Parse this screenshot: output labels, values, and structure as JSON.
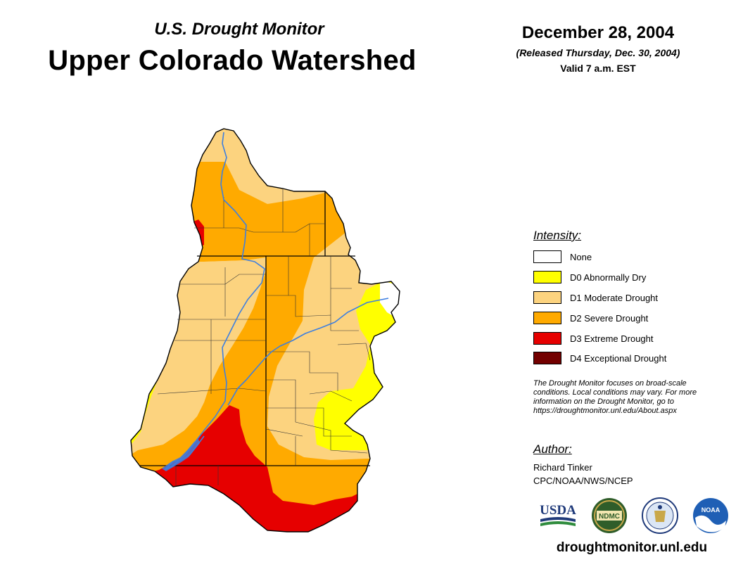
{
  "header": {
    "subtitle": "U.S. Drought Monitor",
    "title": "Upper Colorado Watershed",
    "date": "December 28, 2004",
    "released": "(Released Thursday, Dec. 30, 2004)",
    "valid": "Valid 7 a.m. EST"
  },
  "legend": {
    "title": "Intensity:",
    "items": [
      {
        "label": "None",
        "color": "#ffffff"
      },
      {
        "label": "D0 Abnormally Dry",
        "color": "#ffff00"
      },
      {
        "label": "D1 Moderate Drought",
        "color": "#fcd37f"
      },
      {
        "label": "D2 Severe Drought",
        "color": "#ffaa00"
      },
      {
        "label": "D3 Extreme Drought",
        "color": "#e60000"
      },
      {
        "label": "D4 Exceptional Drought",
        "color": "#730000"
      }
    ]
  },
  "note": {
    "line1": "The Drought Monitor focuses on broad-scale",
    "line2": "conditions. Local conditions may vary. For more",
    "line3": "information on the Drought Monitor, go to",
    "line4": "https://droughtmonitor.unl.edu/About.aspx"
  },
  "author": {
    "title": "Author:",
    "name": "Richard Tinker",
    "org": "CPC/NOAA/NWS/NCEP"
  },
  "logos": {
    "usda": "USDA",
    "ndmc": "NDMC",
    "noaa": "NOAA"
  },
  "website": "droughtmonitor.unl.edu",
  "colors": {
    "river": "#3d7fe0",
    "boundary": "#000000"
  }
}
